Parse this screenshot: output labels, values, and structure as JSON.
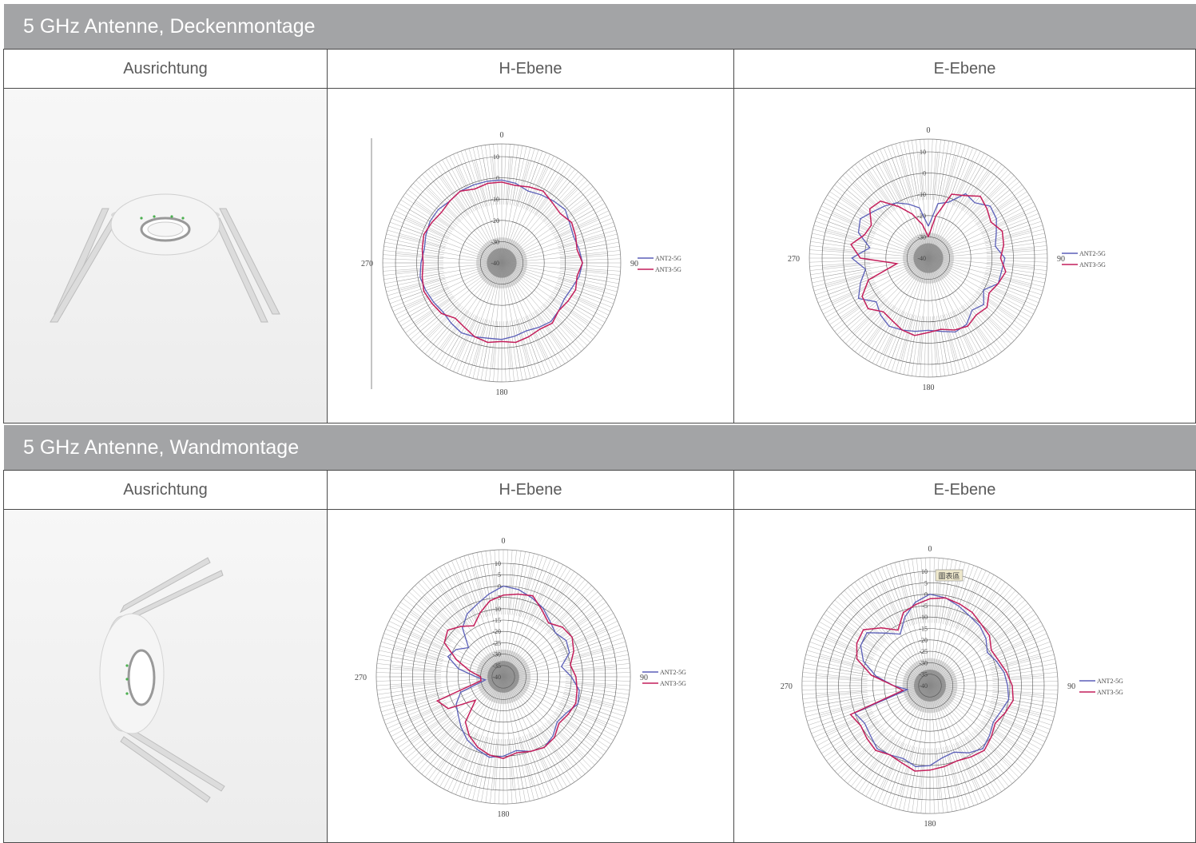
{
  "sections": [
    {
      "title": "5 GHz Antenne, Deckenmontage",
      "headers": [
        "Ausrichtung",
        "H-Ebene",
        "E-Ebene"
      ]
    },
    {
      "title": "5 GHz Antenne, Wandmontage",
      "headers": [
        "Ausrichtung",
        "H-Ebene",
        "E-Ebene"
      ]
    }
  ],
  "chart_data": [
    {
      "type": "polar",
      "section": "5 GHz Antenne, Deckenmontage",
      "plane": "H-Ebene",
      "angle_labels": [
        "0",
        "90",
        "180",
        "270"
      ],
      "radial_ticks": [
        "10",
        "0",
        "-10",
        "-20",
        "-30",
        "-40"
      ],
      "rlim": [
        -40,
        10
      ],
      "series": [
        {
          "name": "ANT2-5G",
          "color": "#5b5fb8",
          "values": [
            -1,
            -2,
            -4,
            -3,
            -2,
            -1,
            -3,
            -4,
            -3,
            -2,
            -3,
            -5,
            -6,
            -5,
            -4,
            -5,
            -6,
            -5,
            -4,
            -4,
            -3,
            -2,
            -3,
            -4,
            -3,
            -2,
            -1,
            -2,
            -3,
            -2,
            -1,
            -1,
            -2,
            -1,
            -1,
            -1
          ]
        },
        {
          "name": "ANT3-5G",
          "color": "#c41f5b",
          "values": [
            -2,
            -3,
            -2,
            -1,
            -3,
            -4,
            -2,
            -3,
            -4,
            -2,
            -4,
            -3,
            -4,
            -5,
            -3,
            -4,
            -3,
            -2,
            -3,
            -2,
            -3,
            -5,
            -6,
            -3,
            -2,
            -1,
            -2,
            -3,
            -2,
            -1,
            -2,
            -3,
            -2,
            -1,
            -3,
            -2
          ]
        }
      ]
    },
    {
      "type": "polar",
      "section": "5 GHz Antenne, Deckenmontage",
      "plane": "E-Ebene",
      "angle_labels": [
        "0",
        "90",
        "180",
        "270"
      ],
      "radial_ticks": [
        "10",
        "0",
        "-10",
        "-20",
        "-30",
        "-40"
      ],
      "rlim": [
        -40,
        10
      ],
      "series": [
        {
          "name": "ANT2-5G",
          "color": "#5b5fb8",
          "values": [
            -25,
            -14,
            -12,
            -5,
            -6,
            -2,
            -3,
            -6,
            -8,
            -4,
            -5,
            -5,
            -10,
            -6,
            -8,
            -4,
            -3,
            -5,
            -6,
            -5,
            -4,
            -3,
            -5,
            -8,
            -2,
            -6,
            -10,
            -4,
            -12,
            -5,
            -3,
            -6,
            -8,
            -10,
            -13,
            -16
          ]
        },
        {
          "name": "ANT3-5G",
          "color": "#c41f5b",
          "values": [
            -30,
            -20,
            -8,
            -6,
            -2,
            -4,
            -6,
            -3,
            -4,
            -6,
            -3,
            -5,
            -7,
            -4,
            -5,
            -3,
            -4,
            -6,
            -5,
            -3,
            -4,
            -6,
            -7,
            -3,
            -4,
            -10,
            -25,
            -8,
            -3,
            -8,
            -9,
            -4,
            -5,
            -12,
            -18,
            -24
          ]
        }
      ]
    },
    {
      "type": "polar",
      "section": "5 GHz Antenne, Wandmontage",
      "plane": "H-Ebene",
      "angle_labels": [
        "0",
        "90",
        "180",
        "270"
      ],
      "radial_ticks": [
        "10",
        "5",
        "0",
        "-5",
        "-10",
        "-15",
        "-20",
        "-25",
        "-30",
        "-35",
        "-40"
      ],
      "rlim": [
        -40,
        10
      ],
      "series": [
        {
          "name": "ANT2-5G",
          "color": "#5b5fb8",
          "values": [
            0,
            -1,
            -3,
            -5,
            -8,
            -10,
            -8,
            -9,
            -14,
            -10,
            -6,
            -5,
            -8,
            -9,
            -6,
            -4,
            -5,
            -7,
            -5,
            -4,
            -6,
            -8,
            -11,
            -14,
            -16,
            -20,
            -32,
            -28,
            -20,
            -14,
            -16,
            -20,
            -12,
            -8,
            -6,
            -3
          ]
        },
        {
          "name": "ANT3-5G",
          "color": "#c41f5b",
          "values": [
            -4,
            -3,
            -2,
            -6,
            -9,
            -6,
            -5,
            -7,
            -10,
            -8,
            -7,
            -6,
            -7,
            -8,
            -5,
            -4,
            -5,
            -6,
            -4,
            -5,
            -7,
            -10,
            -14,
            -24,
            -12,
            -9,
            -30,
            -30,
            -25,
            -18,
            -10,
            -8,
            -11,
            -14,
            -10,
            -6
          ]
        }
      ]
    },
    {
      "type": "polar",
      "section": "5 GHz Antenne, Wandmontage",
      "plane": "E-Ebene",
      "angle_labels": [
        "0",
        "90",
        "180",
        "270"
      ],
      "radial_ticks": [
        "10",
        "5",
        "0",
        "-5",
        "-10",
        "-15",
        "-20",
        "-25",
        "-30",
        "-35",
        "-40"
      ],
      "rlim": [
        -40,
        10
      ],
      "annotation": "圖表區",
      "series": [
        {
          "name": "ANT2-5G",
          "color": "#5b5fb8",
          "values": [
            0,
            -1,
            -3,
            -5,
            -6,
            -8,
            -11,
            -9,
            -7,
            -6,
            -5,
            -7,
            -8,
            -6,
            -4,
            -6,
            -9,
            -8,
            -5,
            -4,
            -6,
            -5,
            -4,
            -6,
            -7,
            -5,
            -30,
            -24,
            -16,
            -9,
            -5,
            -4,
            -10,
            -14,
            -8,
            -3
          ]
        },
        {
          "name": "ANT3-5G",
          "color": "#c41f5b",
          "values": [
            -2,
            -1,
            -2,
            -3,
            -5,
            -6,
            -9,
            -8,
            -6,
            -4,
            -3,
            -5,
            -7,
            -5,
            -3,
            -4,
            -5,
            -4,
            -3,
            -2,
            -4,
            -5,
            -3,
            -4,
            -5,
            -3,
            -28,
            -24,
            -14,
            -6,
            -3,
            -2,
            -7,
            -12,
            -6,
            -4
          ]
        }
      ]
    }
  ]
}
